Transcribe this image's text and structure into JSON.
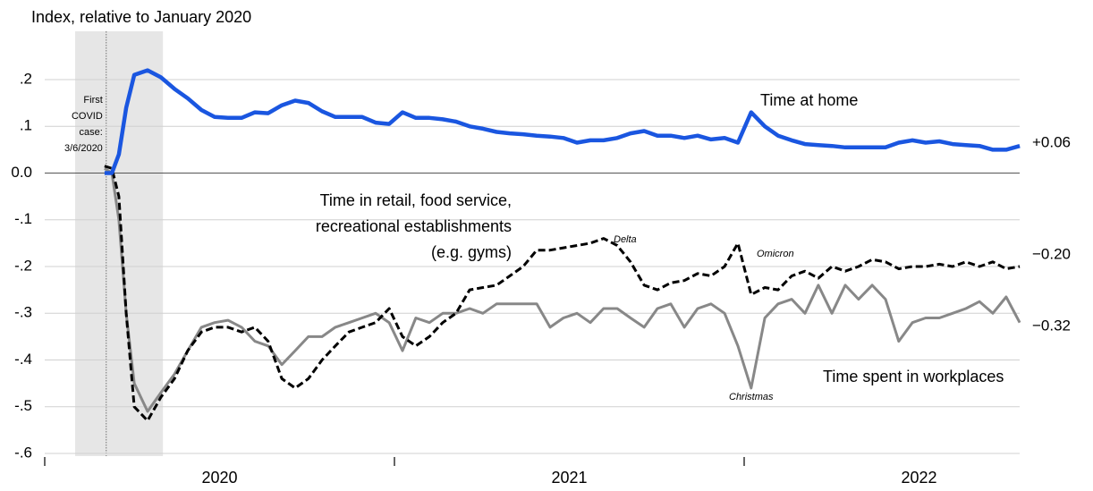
{
  "chart_data": {
    "type": "line",
    "title": "Index, relative to January 2020",
    "x": [
      2020.171,
      2020.192,
      2020.212,
      2020.233,
      2020.256,
      2020.294,
      2020.332,
      2020.371,
      2020.409,
      2020.448,
      2020.486,
      2020.524,
      2020.563,
      2020.601,
      2020.639,
      2020.678,
      2020.716,
      2020.754,
      2020.793,
      2020.831,
      2020.87,
      2020.908,
      2020.946,
      2020.985,
      2021.023,
      2021.061,
      2021.1,
      2021.138,
      2021.176,
      2021.215,
      2021.253,
      2021.292,
      2021.33,
      2021.368,
      2021.407,
      2021.445,
      2021.483,
      2021.522,
      2021.56,
      2021.598,
      2021.637,
      2021.675,
      2021.714,
      2021.752,
      2021.79,
      2021.829,
      2021.867,
      2021.905,
      2021.944,
      2021.982,
      2022.02,
      2022.059,
      2022.097,
      2022.136,
      2022.174,
      2022.212,
      2022.251,
      2022.289,
      2022.327,
      2022.366,
      2022.404,
      2022.442,
      2022.481,
      2022.519,
      2022.558,
      2022.596,
      2022.634,
      2022.673,
      2022.711,
      2022.749,
      2022.788
    ],
    "series": [
      {
        "name": "Time at home",
        "color": "#1a56e0",
        "end_label": "+0.06",
        "values": [
          0.0,
          0.0,
          0.04,
          0.14,
          0.21,
          0.22,
          0.205,
          0.18,
          0.16,
          0.135,
          0.12,
          0.118,
          0.118,
          0.13,
          0.128,
          0.145,
          0.155,
          0.15,
          0.132,
          0.12,
          0.12,
          0.12,
          0.108,
          0.105,
          0.13,
          0.118,
          0.118,
          0.115,
          0.11,
          0.1,
          0.095,
          0.088,
          0.085,
          0.083,
          0.08,
          0.078,
          0.075,
          0.065,
          0.07,
          0.07,
          0.075,
          0.085,
          0.09,
          0.08,
          0.08,
          0.075,
          0.08,
          0.072,
          0.075,
          0.065,
          0.13,
          0.1,
          0.08,
          0.07,
          0.062,
          0.06,
          0.058,
          0.055,
          0.055,
          0.055,
          0.055,
          0.065,
          0.07,
          0.065,
          0.068,
          0.062,
          0.06,
          0.058,
          0.05,
          0.05,
          0.058
        ]
      },
      {
        "name": "Time spent in workplaces",
        "color": "#888888",
        "end_label": "−0.32",
        "values": [
          0.01,
          0.0,
          -0.1,
          -0.3,
          -0.45,
          -0.51,
          -0.47,
          -0.43,
          -0.38,
          -0.33,
          -0.32,
          -0.315,
          -0.33,
          -0.36,
          -0.37,
          -0.41,
          -0.38,
          -0.35,
          -0.35,
          -0.33,
          -0.32,
          -0.31,
          -0.3,
          -0.32,
          -0.38,
          -0.31,
          -0.32,
          -0.3,
          -0.3,
          -0.29,
          -0.3,
          -0.28,
          -0.28,
          -0.28,
          -0.28,
          -0.33,
          -0.31,
          -0.3,
          -0.32,
          -0.29,
          -0.29,
          -0.31,
          -0.33,
          -0.29,
          -0.28,
          -0.33,
          -0.29,
          -0.28,
          -0.3,
          -0.37,
          -0.46,
          -0.31,
          -0.28,
          -0.27,
          -0.3,
          -0.24,
          -0.3,
          -0.24,
          -0.27,
          -0.24,
          -0.27,
          -0.36,
          -0.32,
          -0.31,
          -0.31,
          -0.3,
          -0.29,
          -0.275,
          -0.3,
          -0.265,
          -0.32
        ]
      },
      {
        "name": [
          "Time in retail, food service,",
          "recreational establishments",
          "(e.g. gyms)"
        ],
        "color": "#000000",
        "dashed": true,
        "end_label": "−0.20",
        "values": [
          0.015,
          0.01,
          -0.05,
          -0.3,
          -0.5,
          -0.53,
          -0.48,
          -0.44,
          -0.38,
          -0.34,
          -0.33,
          -0.33,
          -0.34,
          -0.33,
          -0.36,
          -0.44,
          -0.46,
          -0.44,
          -0.4,
          -0.37,
          -0.34,
          -0.33,
          -0.32,
          -0.29,
          -0.35,
          -0.37,
          -0.35,
          -0.32,
          -0.3,
          -0.25,
          -0.245,
          -0.24,
          -0.22,
          -0.2,
          -0.165,
          -0.165,
          -0.16,
          -0.155,
          -0.15,
          -0.14,
          -0.155,
          -0.19,
          -0.24,
          -0.25,
          -0.235,
          -0.23,
          -0.215,
          -0.22,
          -0.2,
          -0.15,
          -0.26,
          -0.245,
          -0.25,
          -0.22,
          -0.21,
          -0.225,
          -0.2,
          -0.21,
          -0.2,
          -0.185,
          -0.19,
          -0.205,
          -0.2,
          -0.2,
          -0.195,
          -0.2,
          -0.19,
          -0.2,
          -0.19,
          -0.205,
          -0.2
        ]
      }
    ],
    "annotations": [
      "Delta",
      "Omicron",
      "Christmas"
    ],
    "first_case_note": [
      "First",
      "COVID",
      "case:",
      "3/6/2020"
    ],
    "first_case_x": 2020.176,
    "shaded_span": [
      2020.087,
      2020.338
    ],
    "xlim": [
      2020,
      2023
    ],
    "xticks": [
      {
        "value": 2020,
        "label": "2020"
      },
      {
        "value": 2021,
        "label": "2021"
      },
      {
        "value": 2022,
        "label": "2022"
      }
    ],
    "ylim": [
      -0.6,
      0.2
    ],
    "yticks": [
      {
        "value": 0.2,
        "label": ".2"
      },
      {
        "value": 0.1,
        "label": ".1"
      },
      {
        "value": 0,
        "label": "0.0"
      },
      {
        "value": -0.1,
        "label": "-.1"
      },
      {
        "value": -0.2,
        "label": "-.2"
      },
      {
        "value": -0.3,
        "label": "-.3"
      },
      {
        "value": -0.4,
        "label": "-.4"
      },
      {
        "value": -0.5,
        "label": "-.5"
      },
      {
        "value": -0.6,
        "label": "-.6"
      }
    ],
    "grid": true
  }
}
